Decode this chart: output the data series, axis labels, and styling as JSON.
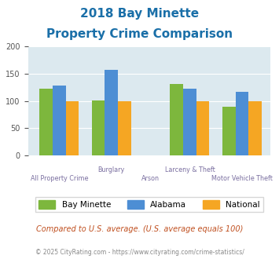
{
  "title_line1": "2018 Bay Minette",
  "title_line2": "Property Crime Comparison",
  "bar_categories": [
    "All Property Crime",
    "Burglary",
    "Larceny & Theft",
    "Motor Vehicle Theft"
  ],
  "bay_minette": [
    123,
    101,
    132,
    90
  ],
  "alabama": [
    128,
    157,
    122,
    117
  ],
  "national": [
    100,
    100,
    100,
    100
  ],
  "colors": {
    "bay_minette": "#7db73d",
    "alabama": "#4d8ed4",
    "national": "#f5a623"
  },
  "ylim": [
    0,
    200
  ],
  "yticks": [
    0,
    50,
    100,
    150,
    200
  ],
  "legend_labels": [
    "Bay Minette",
    "Alabama",
    "National"
  ],
  "note": "Compared to U.S. average. (U.S. average equals 100)",
  "footer": "© 2025 CityRating.com - https://www.cityrating.com/crime-statistics/",
  "title_color": "#1a6fa8",
  "axis_label_color": "#7a6fa0",
  "plot_bg": "#dce9ef",
  "note_color": "#c05020",
  "footer_color": "#888888"
}
